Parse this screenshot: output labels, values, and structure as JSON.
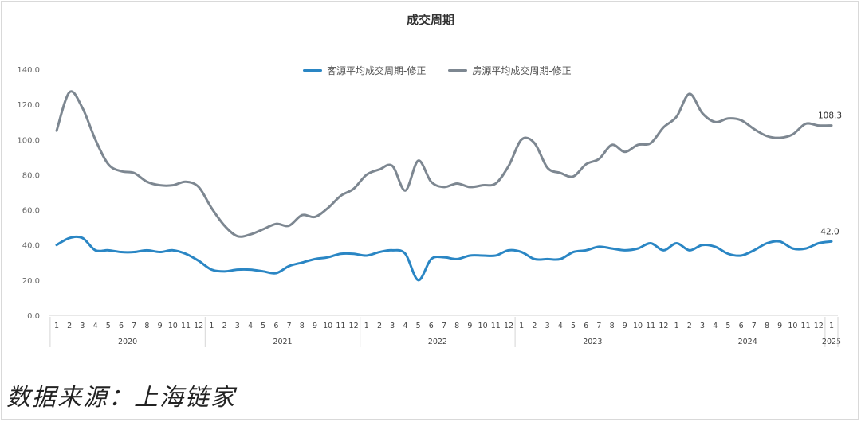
{
  "chart_data": {
    "type": "line",
    "title": "成交周期",
    "ylim": [
      0,
      140
    ],
    "yticks": [
      "0.0",
      "20.0",
      "40.0",
      "60.0",
      "80.0",
      "100.0",
      "120.0",
      "140.0"
    ],
    "grid": false,
    "legend_position": "top-center",
    "month_labels": [
      "1",
      "2",
      "3",
      "4",
      "5",
      "6",
      "7",
      "8",
      "9",
      "10",
      "11",
      "12",
      "1",
      "2",
      "3",
      "4",
      "5",
      "6",
      "7",
      "8",
      "9",
      "10",
      "11",
      "12",
      "1",
      "2",
      "3",
      "4",
      "5",
      "6",
      "7",
      "8",
      "9",
      "10",
      "11",
      "12",
      "1",
      "2",
      "3",
      "4",
      "5",
      "6",
      "7",
      "8",
      "9",
      "10",
      "11",
      "12",
      "1",
      "2",
      "3",
      "4",
      "5",
      "6",
      "7",
      "8",
      "9",
      "10",
      "11",
      "12",
      "1"
    ],
    "years": [
      "2020",
      "2021",
      "2022",
      "2023",
      "2024",
      "2025"
    ],
    "series": [
      {
        "name": "客源平均成交周期-修正",
        "color": "#2a86c4",
        "end_label": "42.0",
        "values": [
          40,
          44,
          44,
          37,
          37,
          36,
          36,
          37,
          36,
          37,
          35,
          31,
          26,
          25,
          26,
          26,
          25,
          24,
          28,
          30,
          32,
          33,
          35,
          35,
          34,
          36,
          37,
          35,
          20,
          32,
          33,
          32,
          34,
          34,
          34,
          37,
          36,
          32,
          32,
          32,
          36,
          37,
          39,
          38,
          37,
          38,
          41,
          37,
          41,
          37,
          40,
          39,
          35,
          34,
          37,
          41,
          42,
          38,
          38,
          41,
          42
        ]
      },
      {
        "name": "房源平均成交周期-修正",
        "color": "#7d8791",
        "end_label": "108.3",
        "values": [
          105,
          127,
          118,
          100,
          86,
          82,
          81,
          76,
          74,
          74,
          76,
          73,
          61,
          51,
          45,
          46,
          49,
          52,
          51,
          57,
          56,
          61,
          68,
          72,
          80,
          83,
          85,
          71,
          88,
          76,
          73,
          75,
          73,
          74,
          75,
          85,
          100,
          98,
          84,
          81,
          79,
          86,
          89,
          97,
          93,
          97,
          98,
          107,
          113,
          126,
          115,
          110,
          112,
          111,
          106,
          102,
          101,
          103,
          109,
          108,
          108
        ]
      }
    ]
  },
  "footer": {
    "source": "数据来源：上海链家"
  }
}
